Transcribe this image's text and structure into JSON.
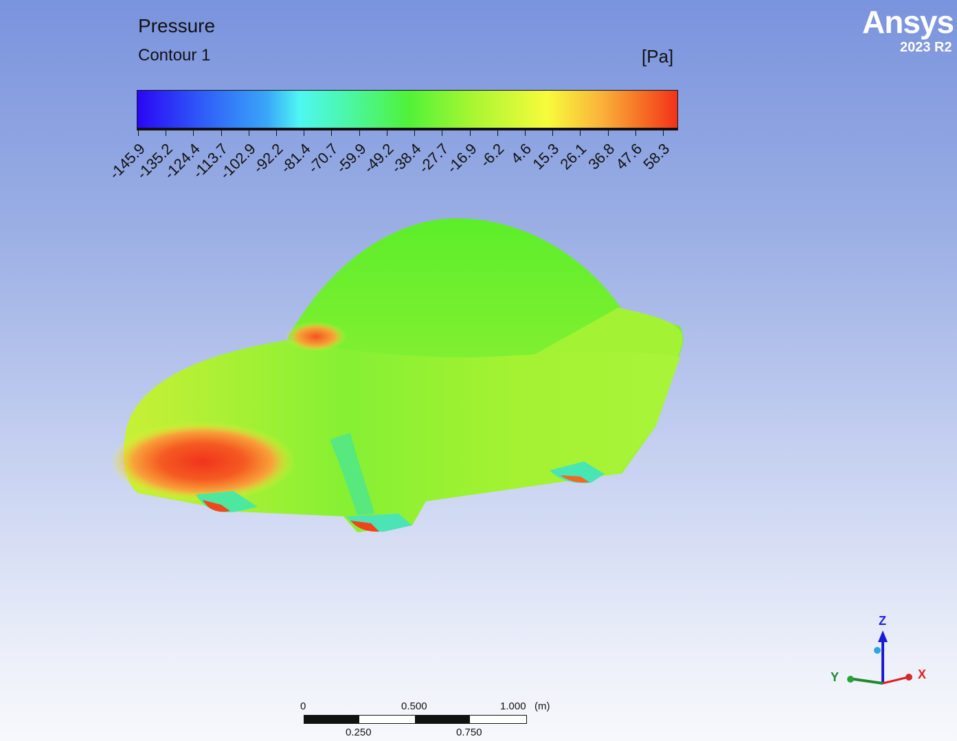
{
  "legend": {
    "title": "Pressure",
    "subtitle": "Contour 1",
    "unit": "[Pa]",
    "tick_labels": [
      "-145.9",
      "-135.2",
      "-124.4",
      "-113.7",
      "-102.9",
      "-92.2",
      "-81.4",
      "-70.7",
      "-59.9",
      "-49.2",
      "-38.4",
      "-27.7",
      "-16.9",
      "-6.2",
      "4.6",
      "15.3",
      "26.1",
      "36.8",
      "47.6",
      "58.3"
    ]
  },
  "logo": {
    "name": "Ansys",
    "version": "2023 R2"
  },
  "scale_bar": {
    "top_labels": [
      "0",
      "0.500",
      "1.000"
    ],
    "unit": "(m)",
    "bottom_labels": [
      "0.250",
      "0.750"
    ]
  },
  "triad": {
    "z": "Z",
    "y": "Y",
    "x": "X"
  },
  "colors": {
    "background_top": "#7a93dd",
    "background_bottom": "#f7f8fc",
    "pressure_low": "#2a06f5",
    "pressure_mid": "#4ff23a",
    "pressure_high": "#f1321b"
  }
}
